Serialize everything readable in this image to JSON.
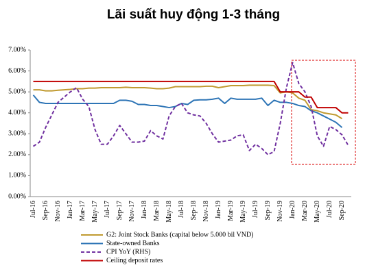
{
  "chart_data": {
    "type": "line",
    "title": "Lãi suất huy động 1-3 tháng",
    "categories": [
      "Jul-16",
      null,
      "Sep-16",
      null,
      "Nov-16",
      null,
      "Jan-17",
      null,
      "Mar-17",
      null,
      "May-17",
      null,
      "Jul-17",
      null,
      "Sep-17",
      null,
      "Nov-17",
      null,
      "Jan-18",
      null,
      "Mar-18",
      null,
      "May-18",
      null,
      "Jul-18",
      null,
      "Sep-18",
      null,
      "Nov-18",
      null,
      "Jan-19",
      null,
      "Mar-19",
      null,
      "May-19",
      null,
      "Jul-19",
      null,
      "Sep-19",
      null,
      "Nov-19",
      null,
      "Jan-20",
      null,
      "Mar-20",
      null,
      "May-20",
      null,
      "Jul-20",
      null,
      "Sep-20",
      null
    ],
    "series": [
      {
        "name": "G2: Joint Stock Banks (capital below 5.000 bil VND)",
        "color": "#c09a30",
        "dash": false,
        "values": [
          5.1,
          5.1,
          5.05,
          5.05,
          5.08,
          5.1,
          5.12,
          5.15,
          5.15,
          5.18,
          5.18,
          5.2,
          5.2,
          5.2,
          5.2,
          5.22,
          5.2,
          5.2,
          5.2,
          5.18,
          5.15,
          5.15,
          5.18,
          5.25,
          5.25,
          5.25,
          5.25,
          5.25,
          5.27,
          5.27,
          5.2,
          5.25,
          5.3,
          5.3,
          5.3,
          5.32,
          5.32,
          5.32,
          5.32,
          5.3,
          4.95,
          5.0,
          4.95,
          4.7,
          4.6,
          4.15,
          4.1,
          4.0,
          3.95,
          3.9,
          3.72,
          null
        ]
      },
      {
        "name": "State-owned Banks",
        "color": "#2e75b6",
        "dash": false,
        "values": [
          4.85,
          4.5,
          4.45,
          4.45,
          4.45,
          4.45,
          4.45,
          4.45,
          4.45,
          4.45,
          4.45,
          4.45,
          4.45,
          4.45,
          4.6,
          4.6,
          4.55,
          4.4,
          4.4,
          4.35,
          4.35,
          4.3,
          4.25,
          4.3,
          4.45,
          4.4,
          4.6,
          4.62,
          4.62,
          4.65,
          4.7,
          4.45,
          4.7,
          4.65,
          4.65,
          4.65,
          4.65,
          4.7,
          4.35,
          4.6,
          4.5,
          4.5,
          4.45,
          4.35,
          4.3,
          4.1,
          4.0,
          3.85,
          3.7,
          3.55,
          3.3,
          null
        ]
      },
      {
        "name": "CPI YoY  (RHS)",
        "color": "#7030a0",
        "dash": true,
        "values": [
          2.4,
          2.6,
          3.3,
          3.9,
          4.5,
          4.75,
          5.0,
          5.2,
          4.65,
          4.3,
          3.2,
          2.5,
          2.5,
          2.9,
          3.4,
          3.0,
          2.6,
          2.6,
          2.65,
          3.15,
          2.9,
          2.75,
          3.85,
          4.3,
          4.45,
          4.0,
          3.9,
          3.85,
          3.5,
          3.0,
          2.6,
          2.65,
          2.7,
          2.9,
          2.95,
          2.2,
          2.5,
          2.3,
          2.0,
          2.15,
          3.5,
          5.2,
          6.4,
          5.4,
          5.0,
          4.3,
          2.9,
          2.4,
          3.35,
          3.2,
          2.95,
          2.45
        ]
      },
      {
        "name": "Ceiling deposit rates",
        "color": "#c00000",
        "dash": false,
        "values": [
          5.5,
          5.5,
          5.5,
          5.5,
          5.5,
          5.5,
          5.5,
          5.5,
          5.5,
          5.5,
          5.5,
          5.5,
          5.5,
          5.5,
          5.5,
          5.5,
          5.5,
          5.5,
          5.5,
          5.5,
          5.5,
          5.5,
          5.5,
          5.5,
          5.5,
          5.5,
          5.5,
          5.5,
          5.5,
          5.5,
          5.5,
          5.5,
          5.5,
          5.5,
          5.5,
          5.5,
          5.5,
          5.5,
          5.5,
          5.5,
          5.0,
          5.0,
          5.0,
          5.0,
          4.75,
          4.75,
          4.25,
          4.25,
          4.25,
          4.25,
          4.0,
          4.0
        ]
      }
    ],
    "ylim": [
      0,
      7
    ],
    "yticks": [
      {
        "value": 0,
        "label": "0.00%"
      },
      {
        "value": 1,
        "label": "1.00%"
      },
      {
        "value": 2,
        "label": "2.00%"
      },
      {
        "value": 3,
        "label": "3.00%"
      },
      {
        "value": 4,
        "label": "4.00%"
      },
      {
        "value": 5,
        "label": "5.00%"
      },
      {
        "value": 6,
        "label": "6.00%"
      },
      {
        "value": 7,
        "label": "7.00%"
      }
    ],
    "grid": false
  }
}
